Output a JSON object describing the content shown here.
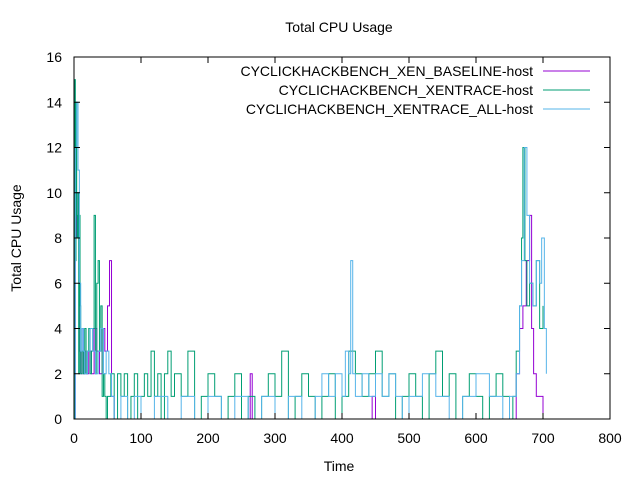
{
  "chart_data": {
    "type": "line",
    "title": "Total CPU Usage",
    "xlabel": "Time",
    "ylabel": "Total CPU Usage",
    "xlim": [
      0,
      800
    ],
    "ylim": [
      0,
      16
    ],
    "x_ticks": [
      0,
      100,
      200,
      300,
      400,
      500,
      600,
      700,
      800
    ],
    "y_ticks": [
      0,
      2,
      4,
      6,
      8,
      10,
      12,
      14,
      16
    ],
    "grid": false,
    "legend_position": "top-right",
    "series": [
      {
        "name": "CYCLICKHACKBENCH_XEN_BASELINE-host",
        "color": "#9400d3",
        "x": [
          0,
          2,
          4,
          6,
          8,
          10,
          12,
          14,
          16,
          18,
          22,
          26,
          30,
          34,
          38,
          42,
          46,
          50,
          53,
          56,
          60,
          100,
          150,
          200,
          250,
          263,
          266,
          300,
          350,
          400,
          440,
          445,
          450,
          500,
          550,
          600,
          640,
          660,
          665,
          670,
          675,
          680,
          683,
          686,
          690,
          700
        ],
        "y": [
          0,
          8,
          10,
          9,
          3,
          2,
          4,
          2,
          3,
          2,
          3,
          2,
          4,
          3,
          2,
          4,
          3,
          5,
          7,
          1,
          0,
          0,
          0,
          0,
          0,
          2,
          0,
          0,
          0,
          0,
          0,
          1,
          0,
          0,
          0,
          0,
          0,
          2,
          4,
          5,
          7,
          9,
          4,
          2,
          1,
          0
        ]
      },
      {
        "name": "CYCLICHACKBENCH_XENTRACE-host",
        "color": "#009e73",
        "x": [
          0,
          1,
          2,
          3,
          4,
          5,
          6,
          7,
          8,
          9,
          10,
          12,
          14,
          16,
          18,
          20,
          22,
          24,
          26,
          28,
          30,
          32,
          34,
          36,
          38,
          40,
          42,
          44,
          46,
          48,
          50,
          55,
          60,
          65,
          70,
          75,
          80,
          85,
          90,
          95,
          100,
          105,
          110,
          115,
          120,
          125,
          130,
          135,
          140,
          145,
          150,
          160,
          170,
          180,
          190,
          200,
          210,
          220,
          230,
          240,
          250,
          260,
          270,
          280,
          290,
          300,
          310,
          320,
          330,
          340,
          350,
          360,
          370,
          380,
          390,
          400,
          410,
          420,
          430,
          440,
          450,
          460,
          470,
          480,
          490,
          500,
          510,
          520,
          530,
          540,
          550,
          560,
          570,
          580,
          590,
          600,
          610,
          620,
          630,
          640,
          650,
          655,
          660,
          665,
          668,
          670,
          673,
          676,
          680,
          685,
          690,
          695,
          700
        ],
        "y": [
          0,
          15,
          7,
          14,
          9,
          8,
          10,
          2,
          9,
          5,
          2,
          3,
          2,
          4,
          2,
          3,
          4,
          2,
          3,
          4,
          9,
          2,
          6,
          7,
          3,
          5,
          1,
          2,
          1,
          0,
          1,
          2,
          0,
          2,
          1,
          2,
          0,
          1,
          2,
          0,
          1,
          2,
          1,
          3,
          1,
          2,
          0,
          2,
          3,
          1,
          2,
          1,
          3,
          0,
          1,
          2,
          1,
          0,
          1,
          2,
          0,
          1,
          0,
          1,
          2,
          1,
          3,
          0,
          1,
          2,
          1,
          0,
          1,
          2,
          0,
          1,
          3,
          2,
          1,
          2,
          3,
          1,
          2,
          0,
          1,
          2,
          1,
          0,
          2,
          3,
          1,
          2,
          0,
          1,
          2,
          1,
          0,
          1,
          2,
          1,
          0,
          1,
          3,
          5,
          8,
          12,
          7,
          5,
          6,
          5,
          7,
          4,
          5
        ]
      },
      {
        "name": "CYCLICHACKBENCH_XENTRACE_ALL-host",
        "color": "#56b4e9",
        "x": [
          0,
          2,
          4,
          6,
          8,
          10,
          12,
          14,
          16,
          20,
          24,
          28,
          32,
          36,
          40,
          44,
          48,
          52,
          56,
          60,
          70,
          80,
          90,
          100,
          120,
          140,
          160,
          180,
          200,
          220,
          240,
          260,
          280,
          300,
          320,
          340,
          360,
          370,
          380,
          390,
          400,
          405,
          410,
          413,
          416,
          420,
          430,
          440,
          450,
          460,
          470,
          480,
          490,
          500,
          520,
          540,
          560,
          580,
          600,
          620,
          640,
          650,
          660,
          665,
          668,
          672,
          676,
          680,
          685,
          690,
          695,
          698,
          702,
          705
        ],
        "y": [
          0,
          12,
          14,
          11,
          6,
          3,
          4,
          3,
          2,
          3,
          4,
          3,
          2,
          3,
          4,
          2,
          3,
          2,
          1,
          0,
          1,
          0,
          1,
          0,
          1,
          0,
          1,
          0,
          1,
          0,
          1,
          0,
          1,
          0,
          1,
          0,
          1,
          2,
          1,
          2,
          1,
          3,
          2,
          7,
          2,
          1,
          2,
          1,
          2,
          1,
          2,
          1,
          0,
          1,
          2,
          1,
          0,
          1,
          2,
          1,
          0,
          1,
          2,
          5,
          7,
          12,
          9,
          6,
          5,
          7,
          6,
          8,
          4,
          2
        ]
      }
    ]
  }
}
